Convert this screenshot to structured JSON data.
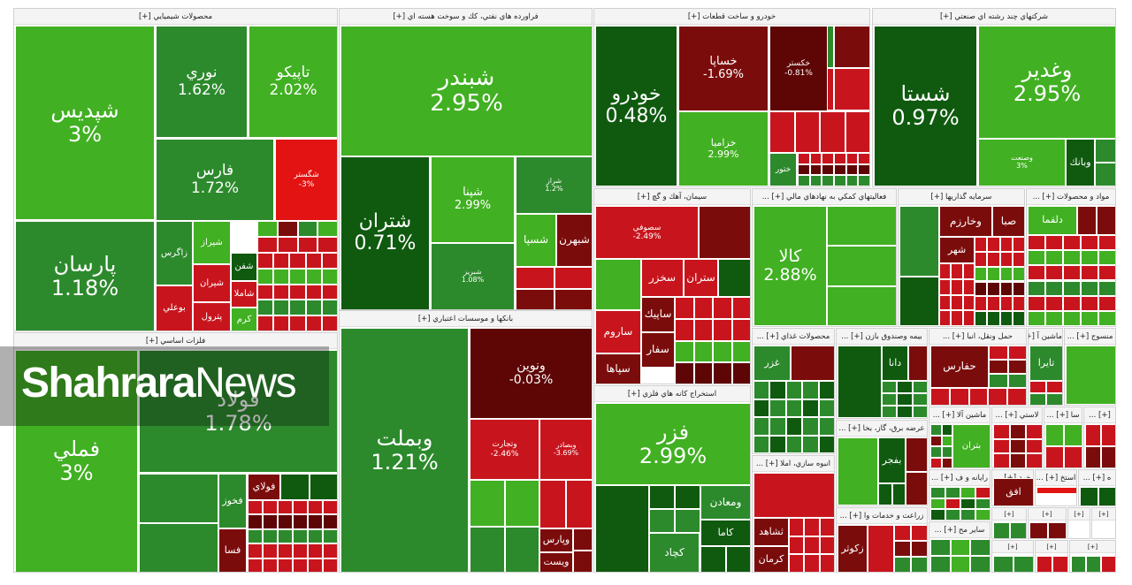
{
  "colors": {
    "dkgreen": "#0f5a0f",
    "green": "#2c8a2c",
    "lgreen": "#41b022",
    "bgreen": "#2ea71d",
    "red": "#c8151d",
    "dkred": "#7b0c0c",
    "maroon": "#5e0606",
    "brightred": "#e31313"
  },
  "watermark": {
    "brand_bold": "Shahrara",
    "brand_light": "News"
  },
  "sectors": [
    {
      "id": "chem",
      "title": "محصولات شيميايي [+]"
    },
    {
      "id": "oil",
      "title": "فراورده هاي نفتي، كك و سوخت هسته اي [+]"
    },
    {
      "id": "auto",
      "title": "خودرو و ساخت قطعات [+]"
    },
    {
      "id": "multi",
      "title": "شركتهاي چند رشته اي صنعتي [+]"
    },
    {
      "id": "metal",
      "title": "فلزات اساسي [+]"
    },
    {
      "id": "bank",
      "title": "بانكها و موسسات اعتباري [+]"
    },
    {
      "id": "cement",
      "title": "سيمان، آهك و گچ [+]"
    },
    {
      "id": "fin",
      "title": "فعاليتهاي كمكي به نهادهاي مالي [+] ..."
    },
    {
      "id": "invest",
      "title": "سرمايه گذاريها [+]"
    },
    {
      "id": "mat",
      "title": "مواد و محصولات [+] ..."
    },
    {
      "id": "mine",
      "title": "استخراج كانه هاي فلزي [+]"
    },
    {
      "id": "food",
      "title": "محصولات غذاي [+] ..."
    },
    {
      "id": "insur",
      "title": "بيمه وصندوق بازن [+] ..."
    },
    {
      "id": "trans",
      "title": "حمل ونقل، انبا [+] ..."
    },
    {
      "id": "mach",
      "title": "ماشين آ [+] ..."
    },
    {
      "id": "textile",
      "title": "منسوج [+] ..."
    },
    {
      "id": "power",
      "title": "عرضه برق، گاز، بخا [+] ..."
    },
    {
      "id": "estate",
      "title": "انبوه سازي، املا [+] ..."
    },
    {
      "id": "agri",
      "title": "زراعت و خدمات وا [+] ..."
    },
    {
      "id": "elec",
      "title": "ماشين آلا [+] ..."
    },
    {
      "id": "plast",
      "title": "لاستي [+] ..."
    },
    {
      "id": "sa",
      "title": "سا [+] ..."
    },
    {
      "id": "x1",
      "title": "[+] ..."
    },
    {
      "id": "pharm",
      "title": "رايانه و ف [+] ..."
    },
    {
      "id": "retail",
      "title": "خرد [+] ..."
    },
    {
      "id": "mining2",
      "title": "استخ [+] ..."
    },
    {
      "id": "x2",
      "title": "ه [+] ..."
    },
    {
      "id": "other",
      "title": "ساير مح [+] ..."
    },
    {
      "id": "x3",
      "title": "[+]"
    },
    {
      "id": "x4",
      "title": "[+]"
    },
    {
      "id": "x5",
      "title": "[+]"
    },
    {
      "id": "x6",
      "title": "[+]"
    },
    {
      "id": "x7",
      "title": "[+]"
    },
    {
      "id": "x8",
      "title": "[+]"
    },
    {
      "id": "x9",
      "title": "[+]"
    }
  ],
  "tiles": [
    {
      "name": "شپديس",
      "pct": "3%",
      "color": "lgreen"
    },
    {
      "name": "نوري",
      "pct": "1.62%",
      "color": "green"
    },
    {
      "name": "تاپيكو",
      "pct": "2.02%",
      "color": "lgreen"
    },
    {
      "name": "فارس",
      "pct": "1.72%",
      "color": "green"
    },
    {
      "name": "شگستر",
      "pct": "-3%",
      "color": "brightred"
    },
    {
      "name": "پارسان",
      "pct": "1.18%",
      "color": "green"
    },
    {
      "name": "زاگرس",
      "pct": "",
      "color": "green"
    },
    {
      "name": "شيراز",
      "pct": "",
      "color": "lgreen"
    },
    {
      "name": "شيران",
      "pct": "",
      "color": "red"
    },
    {
      "name": "پترول",
      "pct": "",
      "color": "red"
    },
    {
      "name": "بوعلي",
      "pct": "",
      "color": "red"
    },
    {
      "name": "شفن",
      "pct": "",
      "color": "dkgreen"
    },
    {
      "name": "شاملا",
      "pct": "",
      "color": "red"
    },
    {
      "name": "كرم",
      "pct": "",
      "color": "lgreen"
    },
    {
      "name": "شبندر",
      "pct": "2.95%",
      "color": "lgreen"
    },
    {
      "name": "شتران",
      "pct": "0.71%",
      "color": "dkgreen"
    },
    {
      "name": "شپنا",
      "pct": "2.99%",
      "color": "lgreen"
    },
    {
      "name": "شراز",
      "pct": "1.2%",
      "color": "green"
    },
    {
      "name": "شبريز",
      "pct": "1.08%",
      "color": "green"
    },
    {
      "name": "شسپا",
      "pct": "",
      "color": "lgreen"
    },
    {
      "name": "شبهرن",
      "pct": "",
      "color": "dkred"
    },
    {
      "name": "خودرو",
      "pct": "0.48%",
      "color": "dkgreen"
    },
    {
      "name": "خساپا",
      "pct": "-1.69%",
      "color": "dkred"
    },
    {
      "name": "خكستر",
      "pct": "-0.81%",
      "color": "maroon"
    },
    {
      "name": "خزاميا",
      "pct": "2.99%",
      "color": "lgreen"
    },
    {
      "name": "ختور",
      "pct": "",
      "color": "green"
    },
    {
      "name": "شستا",
      "pct": "0.97%",
      "color": "dkgreen"
    },
    {
      "name": "وغدير",
      "pct": "2.95%",
      "color": "lgreen"
    },
    {
      "name": "وصنعت",
      "pct": "3%",
      "color": "lgreen"
    },
    {
      "name": "وبانك",
      "pct": "",
      "color": "dkgreen"
    },
    {
      "name": "فملي",
      "pct": "3%",
      "color": "lgreen"
    },
    {
      "name": "فولاد",
      "pct": "1.78%",
      "color": "green"
    },
    {
      "name": "فخوز",
      "pct": "",
      "color": "green"
    },
    {
      "name": "فولاي",
      "pct": "",
      "color": "dkred"
    },
    {
      "name": "فسا",
      "pct": "",
      "color": "dkred"
    },
    {
      "name": "وبملت",
      "pct": "1.21%",
      "color": "green"
    },
    {
      "name": "ونوين",
      "pct": "-0.03%",
      "color": "maroon"
    },
    {
      "name": "وتجارت",
      "pct": "-2.46%",
      "color": "red"
    },
    {
      "name": "وبصادر",
      "pct": "-3.69%",
      "color": "red"
    },
    {
      "name": "وپارس",
      "pct": "",
      "color": "dkred"
    },
    {
      "name": "ويست",
      "pct": "",
      "color": "dkred"
    },
    {
      "name": "سصوفي",
      "pct": "-2.49%",
      "color": "red"
    },
    {
      "name": "سخزر",
      "pct": "",
      "color": "red"
    },
    {
      "name": "ستران",
      "pct": "",
      "color": "red"
    },
    {
      "name": "ساروم",
      "pct": "",
      "color": "red"
    },
    {
      "name": "سپاها",
      "pct": "",
      "color": "dkred"
    },
    {
      "name": "ساپيك",
      "pct": "",
      "color": "dkred"
    },
    {
      "name": "سفار",
      "pct": "",
      "color": "dkred"
    },
    {
      "name": "فزر",
      "pct": "2.99%",
      "color": "lgreen"
    },
    {
      "name": "ومعادن",
      "pct": "",
      "color": "green"
    },
    {
      "name": "كاما",
      "pct": "",
      "color": "dkgreen"
    },
    {
      "name": "كچاد",
      "pct": "",
      "color": "green"
    },
    {
      "name": "كالا",
      "pct": "2.88%",
      "color": "lgreen"
    },
    {
      "name": "وخارزم",
      "pct": "",
      "color": "dkred"
    },
    {
      "name": "صبا",
      "pct": "",
      "color": "dkred"
    },
    {
      "name": "شهر",
      "pct": "",
      "color": "dkred"
    },
    {
      "name": "دلقما",
      "pct": "",
      "color": "lgreen"
    },
    {
      "name": "غزر",
      "pct": "",
      "color": "green"
    },
    {
      "name": "دانا",
      "pct": "",
      "color": "dkgreen"
    },
    {
      "name": "حفارس",
      "pct": "",
      "color": "dkred"
    },
    {
      "name": "تايرا",
      "pct": "",
      "color": "green"
    },
    {
      "name": "بفجر",
      "pct": "",
      "color": "dkgreen"
    },
    {
      "name": "ثشاهد",
      "pct": "",
      "color": "dkred"
    },
    {
      "name": "كرمان",
      "pct": "",
      "color": "dkred"
    },
    {
      "name": "زكوثر",
      "pct": "",
      "color": "dkred"
    },
    {
      "name": "بتران",
      "pct": "",
      "color": "lgreen"
    },
    {
      "name": "افق",
      "pct": "",
      "color": "dkred"
    },
    {
      "name": "اطلا",
      "pct": "",
      "color": "dkred"
    }
  ]
}
